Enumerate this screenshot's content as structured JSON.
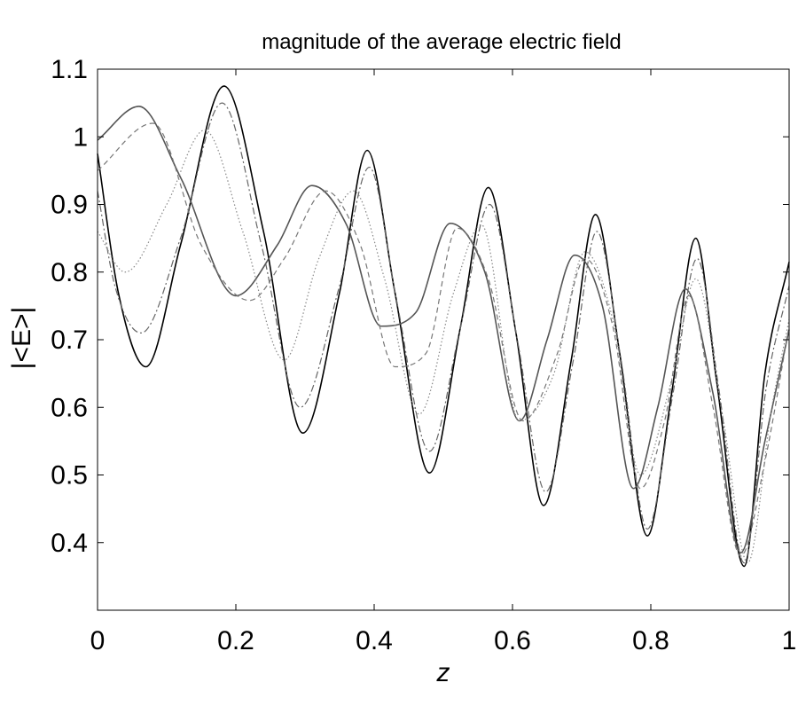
{
  "chart_data": {
    "type": "line",
    "title": "magnitude of the average electric field",
    "xlabel": "z",
    "ylabel": "|<E>|",
    "xlim": [
      0,
      1
    ],
    "ylim": [
      0.3,
      1.1
    ],
    "x_ticks": [
      0,
      0.2,
      0.4,
      0.6,
      0.8,
      1
    ],
    "x_tick_labels": [
      "0",
      "0.2",
      "0.4",
      "0.6",
      "0.8",
      "1"
    ],
    "y_ticks": [
      0.4,
      0.5,
      0.6,
      0.7,
      0.8,
      0.9,
      1,
      1.1
    ],
    "y_tick_labels": [
      "0.4",
      "0.5",
      "0.6",
      "0.7",
      "0.8",
      "0.9",
      "1",
      "1.1"
    ],
    "grid": false,
    "legend": "none",
    "series": [
      {
        "style": "solid",
        "color": "#000000",
        "x": [
          0,
          0.03,
          0.07,
          0.12,
          0.183,
          0.24,
          0.297,
          0.35,
          0.39,
          0.43,
          0.48,
          0.525,
          0.565,
          0.605,
          0.645,
          0.685,
          0.72,
          0.755,
          0.795,
          0.83,
          0.865,
          0.895,
          0.935,
          0.965,
          1.0
        ],
        "y": [
          0.975,
          0.77,
          0.66,
          0.84,
          1.075,
          0.86,
          0.562,
          0.77,
          0.98,
          0.77,
          0.503,
          0.72,
          0.925,
          0.71,
          0.455,
          0.67,
          0.885,
          0.68,
          0.41,
          0.62,
          0.85,
          0.64,
          0.365,
          0.65,
          0.815
        ]
      },
      {
        "style": "solid",
        "color": "#555555",
        "x": [
          0,
          0.06,
          0.12,
          0.2,
          0.26,
          0.31,
          0.36,
          0.41,
          0.46,
          0.51,
          0.56,
          0.61,
          0.65,
          0.69,
          0.73,
          0.775,
          0.81,
          0.85,
          0.89,
          0.93,
          0.965,
          1.0
        ],
        "y": [
          0.995,
          1.045,
          0.94,
          0.765,
          0.84,
          0.928,
          0.87,
          0.72,
          0.74,
          0.872,
          0.8,
          0.58,
          0.7,
          0.825,
          0.75,
          0.48,
          0.6,
          0.775,
          0.62,
          0.385,
          0.55,
          0.715
        ]
      },
      {
        "style": "dashed",
        "color": "#777777",
        "x": [
          0,
          0.08,
          0.15,
          0.22,
          0.27,
          0.33,
          0.38,
          0.43,
          0.475,
          0.52,
          0.565,
          0.615,
          0.665,
          0.705,
          0.745,
          0.785,
          0.82,
          0.855,
          0.89,
          0.93,
          0.965,
          1.0
        ],
        "y": [
          0.95,
          1.02,
          0.84,
          0.758,
          0.82,
          0.92,
          0.84,
          0.66,
          0.68,
          0.865,
          0.79,
          0.58,
          0.68,
          0.82,
          0.72,
          0.48,
          0.58,
          0.765,
          0.6,
          0.38,
          0.52,
          0.72
        ]
      },
      {
        "style": "dashdot",
        "color": "#666666",
        "x": [
          0,
          0.025,
          0.063,
          0.12,
          0.18,
          0.237,
          0.293,
          0.35,
          0.393,
          0.432,
          0.48,
          0.525,
          0.567,
          0.607,
          0.648,
          0.688,
          0.722,
          0.757,
          0.795,
          0.832,
          0.867,
          0.898,
          0.935,
          0.967,
          1.0
        ],
        "y": [
          0.92,
          0.78,
          0.71,
          0.85,
          1.05,
          0.84,
          0.6,
          0.78,
          0.955,
          0.76,
          0.535,
          0.72,
          0.9,
          0.7,
          0.475,
          0.67,
          0.86,
          0.67,
          0.42,
          0.62,
          0.82,
          0.63,
          0.37,
          0.63,
          0.78
        ]
      },
      {
        "style": "dotted",
        "color": "#888888",
        "x": [
          0,
          0.04,
          0.1,
          0.155,
          0.21,
          0.27,
          0.32,
          0.37,
          0.415,
          0.465,
          0.515,
          0.555,
          0.61,
          0.66,
          0.705,
          0.745,
          0.785,
          0.83,
          0.865,
          0.905,
          0.94,
          0.975,
          1.0
        ],
        "y": [
          0.86,
          0.8,
          0.9,
          1.01,
          0.86,
          0.67,
          0.82,
          0.92,
          0.79,
          0.59,
          0.77,
          0.87,
          0.58,
          0.65,
          0.83,
          0.73,
          0.5,
          0.64,
          0.79,
          0.58,
          0.37,
          0.6,
          0.73
        ]
      }
    ]
  }
}
